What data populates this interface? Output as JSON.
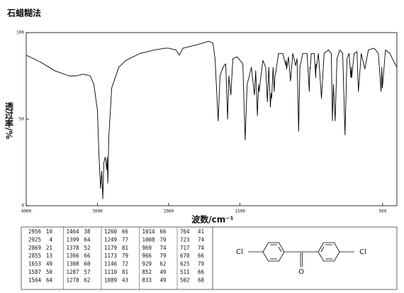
{
  "chart_data": {
    "type": "line",
    "title": "石蜡糊法",
    "xlabel": "波数/cm⁻¹",
    "ylabel": "透过率/%",
    "color": "#000000",
    "xlim": [
      4000,
      400
    ],
    "x_scale_break": 2000,
    "ylim": [
      0,
      100
    ],
    "xticks": [
      4000,
      3000,
      2000,
      1500,
      500
    ],
    "yticks": [
      0,
      50,
      100
    ],
    "x": [
      4000,
      3800,
      3600,
      3400,
      3300,
      3200,
      3100,
      3050,
      3000,
      2980,
      2956,
      2940,
      2925,
      2910,
      2890,
      2869,
      2862,
      2855,
      2840,
      2800,
      2700,
      2600,
      2400,
      2200,
      2050,
      2000,
      1950,
      1925,
      1900,
      1800,
      1720,
      1690,
      1675,
      1660,
      1653,
      1640,
      1620,
      1600,
      1587,
      1578,
      1564,
      1550,
      1520,
      1500,
      1480,
      1464,
      1450,
      1420,
      1399,
      1390,
      1378,
      1370,
      1366,
      1340,
      1320,
      1308,
      1298,
      1287,
      1282,
      1278,
      1268,
      1260,
      1255,
      1249,
      1230,
      1200,
      1179,
      1176,
      1173,
      1160,
      1146,
      1130,
      1110,
      1100,
      1089,
      1080,
      1060,
      1030,
      1014,
      1010,
      1008,
      1000,
      980,
      969,
      967,
      966,
      950,
      929,
      910,
      880,
      860,
      852,
      845,
      833,
      820,
      800,
      780,
      764,
      750,
      735,
      723,
      720,
      717,
      700,
      680,
      670,
      650,
      625,
      600,
      560,
      530,
      511,
      506,
      502,
      480,
      450,
      420,
      400
    ],
    "values": [
      87,
      83,
      78,
      75,
      75,
      76,
      75,
      70,
      55,
      30,
      10,
      20,
      4,
      25,
      28,
      21,
      28,
      13,
      40,
      68,
      80,
      84,
      88,
      90,
      91,
      91,
      90,
      87,
      91,
      93,
      95,
      94,
      85,
      60,
      49,
      75,
      80,
      82,
      50,
      75,
      64,
      85,
      86,
      84,
      82,
      38,
      70,
      80,
      64,
      78,
      52,
      70,
      66,
      84,
      80,
      60,
      80,
      57,
      65,
      62,
      80,
      66,
      75,
      77,
      88,
      88,
      81,
      84,
      79,
      86,
      72,
      88,
      81,
      85,
      43,
      80,
      88,
      88,
      66,
      80,
      79,
      88,
      88,
      74,
      82,
      79,
      88,
      62,
      88,
      90,
      88,
      49,
      70,
      49,
      85,
      90,
      88,
      41,
      85,
      88,
      74,
      80,
      74,
      88,
      89,
      66,
      88,
      79,
      90,
      91,
      88,
      66,
      80,
      68,
      90,
      88,
      83,
      80
    ]
  },
  "peak_table": [
    [
      2956,
      10
    ],
    [
      2925,
      4
    ],
    [
      2869,
      21
    ],
    [
      2855,
      13
    ],
    [
      1653,
      49
    ],
    [
      1587,
      50
    ],
    [
      1564,
      64
    ],
    [
      1464,
      38
    ],
    [
      1399,
      64
    ],
    [
      1378,
      52
    ],
    [
      1366,
      66
    ],
    [
      1308,
      60
    ],
    [
      1287,
      57
    ],
    [
      1278,
      62
    ],
    [
      1260,
      66
    ],
    [
      1249,
      77
    ],
    [
      1179,
      81
    ],
    [
      1173,
      79
    ],
    [
      1146,
      72
    ],
    [
      1110,
      81
    ],
    [
      1089,
      43
    ],
    [
      1014,
      66
    ],
    [
      1008,
      79
    ],
    [
      969,
      74
    ],
    [
      966,
      79
    ],
    [
      929,
      62
    ],
    [
      852,
      49
    ],
    [
      833,
      49
    ],
    [
      764,
      41
    ],
    [
      723,
      74
    ],
    [
      717,
      74
    ],
    [
      670,
      66
    ],
    [
      625,
      79
    ],
    [
      511,
      66
    ],
    [
      502,
      68
    ]
  ],
  "structure": {
    "left": "Cl",
    "right": "Cl",
    "oxygen": "O"
  }
}
